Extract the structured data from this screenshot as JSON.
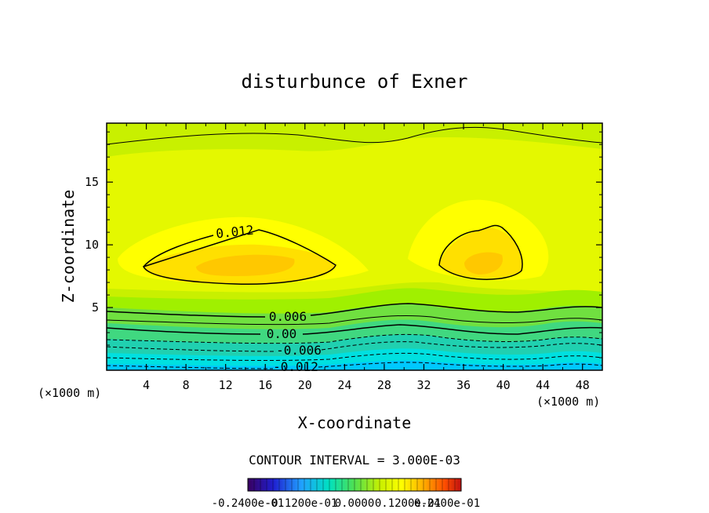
{
  "chart_data": {
    "type": "contour",
    "title": "disturbunce of Exner",
    "xlabel": "X-coordinate",
    "ylabel": "Z-coordinate",
    "x_unit_left": "(×1000 m)",
    "x_unit_right": "(×1000 m)",
    "xlim": [
      0,
      50
    ],
    "ylim": [
      0,
      19.7
    ],
    "x_ticks": [
      "4",
      "8",
      "12",
      "16",
      "20",
      "24",
      "28",
      "32",
      "36",
      "40",
      "44",
      "48"
    ],
    "y_ticks": [
      "5",
      "10",
      "15"
    ],
    "contour_interval_text": "CONTOUR INTERVAL = 3.000E-03",
    "contour_labels": [
      "0.012",
      "0.006",
      "0.00",
      "-0.006",
      "-0.012"
    ],
    "colorbar_labels": [
      "-0.2400e-01",
      "-0.1200e-01",
      "0.0000",
      "0.1200e-01",
      "0.2400e-01"
    ],
    "colorbar_range": [
      -0.024,
      0.024
    ],
    "field_summary": {
      "maxima": [
        {
          "x": 13,
          "z": 8.5,
          "value": 0.015
        },
        {
          "x": 38,
          "z": 8.5,
          "value": 0.015
        }
      ],
      "min_near_surface": -0.015,
      "trough_x": 29
    }
  }
}
